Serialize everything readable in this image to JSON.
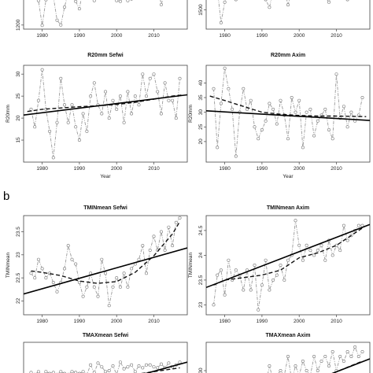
{
  "panel_letter_b": "b",
  "chart_data": [
    {
      "id": "top-left-partial",
      "type": "line",
      "title": "",
      "xlabel": "",
      "ylabel": "",
      "xlim": [
        1975,
        2019
      ],
      "ylim": [
        1150,
        1700
      ],
      "x_ticks": [
        1980,
        1990,
        2000,
        2010
      ],
      "y_ticks": [
        1200
      ],
      "series": [
        {
          "role": "observed",
          "x": [
            1977,
            1978,
            1979,
            1980,
            1981,
            1982,
            1983,
            1984,
            1985,
            1986,
            1987,
            1988,
            1989,
            1990,
            1991,
            1992,
            1993,
            1994,
            1995,
            1996,
            1997,
            1998,
            1999,
            2000,
            2001,
            2002,
            2003,
            2004,
            2005,
            2006,
            2007,
            2008,
            2009,
            2010,
            2011,
            2012,
            2013,
            2014,
            2015,
            2016,
            2017
          ],
          "y": [
            1660,
            1660,
            1500,
            1195,
            1510,
            1600,
            1550,
            1260,
            1200,
            1420,
            1600,
            1550,
            1490,
            1400,
            1650,
            1560,
            1600,
            1500,
            1560,
            1680,
            1600,
            1550,
            1640,
            1500,
            1490,
            1560,
            1500,
            1520,
            1640,
            1600,
            1680,
            1540,
            1600,
            1650,
            1700,
            1450,
            1610,
            1600,
            1550,
            1650,
            1640
          ]
        },
        {
          "role": "loess",
          "x": [
            1976,
            1979
          ],
          "y": [
            1620,
            1630
          ]
        }
      ]
    },
    {
      "id": "top-right-partial",
      "type": "line",
      "title": "",
      "xlabel": "",
      "ylabel": "",
      "xlim": [
        1975,
        2019
      ],
      "ylim": [
        1350,
        1700
      ],
      "x_ticks": [
        1980,
        1990,
        2000,
        2010
      ],
      "y_ticks": [
        1500
      ],
      "series": [
        {
          "role": "observed",
          "x": [
            1977,
            1978,
            1979,
            1980,
            1981,
            1982,
            1983,
            1984,
            1985,
            1986,
            1987,
            1988,
            1989,
            1990,
            1991,
            1992,
            1993,
            1994,
            1995,
            1996,
            1997,
            1998,
            1999,
            2000,
            2001,
            2002,
            2003,
            2004,
            2005,
            2006,
            2007,
            2008,
            2009,
            2010,
            2011,
            2012,
            2013,
            2014,
            2015,
            2016,
            2017
          ],
          "y": [
            1680,
            1660,
            1400,
            1560,
            1640,
            1650,
            1580,
            1620,
            1660,
            1600,
            1690,
            1620,
            1640,
            1600,
            1580,
            1520,
            1650,
            1620,
            1600,
            1660,
            1540,
            1640,
            1600,
            1640,
            1620,
            1640,
            1600,
            1660,
            1620,
            1640,
            1600,
            1560,
            1650,
            1620,
            1600,
            1640,
            1580,
            1660,
            1620,
            1600,
            1660
          ]
        }
      ]
    },
    {
      "id": "r20mm-sefwi",
      "type": "line",
      "title": "R20mm  Sefwi",
      "xlabel": "Year",
      "ylabel": "R20mm",
      "xlim": [
        1975,
        2019
      ],
      "ylim": [
        10,
        32
      ],
      "x_ticks": [
        1980,
        1990,
        2000,
        2010
      ],
      "y_ticks": [
        15,
        20,
        25,
        30
      ],
      "series": [
        {
          "role": "observed",
          "x": [
            1977,
            1978,
            1979,
            1980,
            1981,
            1982,
            1983,
            1984,
            1985,
            1986,
            1987,
            1988,
            1989,
            1990,
            1991,
            1992,
            1993,
            1994,
            1995,
            1996,
            1997,
            1998,
            1999,
            2000,
            2001,
            2002,
            2003,
            2004,
            2005,
            2006,
            2007,
            2008,
            2009,
            2010,
            2011,
            2012,
            2013,
            2014,
            2015,
            2016,
            2017
          ],
          "y": [
            22,
            18,
            24,
            31,
            22,
            17,
            11,
            19,
            29,
            23,
            19,
            23,
            18,
            15,
            21,
            17,
            25,
            28,
            23,
            21,
            26,
            20,
            24,
            22,
            25,
            19,
            26,
            21,
            25,
            23,
            30,
            25,
            29,
            30,
            26,
            21,
            28,
            24,
            24,
            20,
            29
          ]
        },
        {
          "role": "loess",
          "x": [
            1976,
            1980,
            1985,
            1990,
            1995,
            2000,
            2005,
            2010,
            2015,
            2018
          ],
          "y": [
            21.5,
            22.0,
            22.3,
            22.6,
            22.8,
            23.1,
            23.6,
            24.3,
            25.0,
            25.3
          ]
        },
        {
          "role": "linear",
          "x": [
            1975,
            2019
          ],
          "y": [
            20.7,
            25.3
          ]
        }
      ]
    },
    {
      "id": "r20mm-axim",
      "type": "line",
      "title": "R20mm  Axim",
      "xlabel": "Year",
      "ylabel": "R20mm",
      "xlim": [
        1975,
        2019
      ],
      "ylim": [
        13,
        46
      ],
      "x_ticks": [
        1980,
        1990,
        2000,
        2010
      ],
      "y_ticks": [
        20,
        25,
        30,
        35,
        40
      ],
      "series": [
        {
          "role": "observed",
          "x": [
            1977,
            1978,
            1979,
            1980,
            1981,
            1982,
            1983,
            1984,
            1985,
            1986,
            1987,
            1988,
            1989,
            1990,
            1991,
            1992,
            1993,
            1994,
            1995,
            1996,
            1997,
            1998,
            1999,
            2000,
            2001,
            2002,
            2003,
            2004,
            2005,
            2006,
            2007,
            2008,
            2009,
            2010,
            2011,
            2012,
            2013,
            2014,
            2015,
            2016,
            2017
          ],
          "y": [
            38,
            18,
            33,
            45,
            38,
            31,
            15,
            30,
            38,
            31,
            34,
            25,
            21,
            24,
            27,
            33,
            31,
            26,
            34,
            29,
            21,
            35,
            30,
            34,
            18,
            30,
            31,
            22,
            27,
            29,
            31,
            24,
            21,
            43,
            28,
            32,
            25,
            30,
            27,
            29,
            35
          ]
        },
        {
          "role": "loess",
          "x": [
            1976,
            1980,
            1985,
            1990,
            1995,
            2000,
            2005,
            2010,
            2015,
            2018
          ],
          "y": [
            35.5,
            34.0,
            32.0,
            30.0,
            29.3,
            28.9,
            28.7,
            28.7,
            28.6,
            28.5
          ]
        },
        {
          "role": "linear",
          "x": [
            1975,
            2019
          ],
          "y": [
            30.5,
            27.2
          ]
        }
      ]
    },
    {
      "id": "tminmean-sefwi",
      "type": "line",
      "title": "TMINmean  Sefwi",
      "xlabel": "",
      "ylabel": "TMINmean",
      "xlim": [
        1975,
        2019
      ],
      "ylim": [
        21.7,
        23.85
      ],
      "x_ticks": [
        1980,
        1990,
        2000,
        2010
      ],
      "y_ticks": [
        22.0,
        22.5,
        23.0,
        23.5
      ],
      "series": [
        {
          "role": "observed",
          "x": [
            1977,
            1978,
            1979,
            1980,
            1981,
            1982,
            1983,
            1984,
            1985,
            1986,
            1987,
            1988,
            1989,
            1990,
            1991,
            1992,
            1993,
            1994,
            1995,
            1996,
            1997,
            1998,
            1999,
            2000,
            2001,
            2002,
            2003,
            2004,
            2005,
            2006,
            2007,
            2008,
            2009,
            2010,
            2011,
            2012,
            2013,
            2014,
            2015,
            2016,
            2017
          ],
          "y": [
            22.6,
            22.5,
            22.9,
            22.7,
            22.5,
            22.6,
            22.4,
            22.2,
            22.4,
            22.7,
            23.2,
            22.9,
            22.8,
            22.4,
            22.1,
            22.3,
            22.6,
            22.3,
            22.1,
            22.9,
            22.6,
            21.9,
            22.3,
            22.5,
            22.3,
            22.6,
            22.3,
            22.7,
            22.8,
            22.9,
            23.2,
            22.6,
            23.1,
            23.4,
            23.1,
            23.5,
            23.1,
            23.6,
            23.2,
            23.7,
            23.8
          ]
        },
        {
          "role": "loess",
          "x": [
            1977,
            1980,
            1985,
            1990,
            1995,
            2000,
            2005,
            2010,
            2015,
            2017
          ],
          "y": [
            22.65,
            22.62,
            22.55,
            22.43,
            22.38,
            22.42,
            22.62,
            22.98,
            23.45,
            23.72
          ]
        },
        {
          "role": "linear",
          "x": [
            1975,
            2019
          ],
          "y": [
            22.15,
            23.15
          ]
        }
      ]
    },
    {
      "id": "tminmean-axim",
      "type": "line",
      "title": "TMINmean  Axim",
      "xlabel": "",
      "ylabel": "TMINmean",
      "xlim": [
        1975,
        2019
      ],
      "ylim": [
        22.8,
        24.8
      ],
      "x_ticks": [
        1980,
        1990,
        2000,
        2010
      ],
      "y_ticks": [
        23.0,
        23.5,
        24.0,
        24.5
      ],
      "series": [
        {
          "role": "observed",
          "x": [
            1977,
            1978,
            1979,
            1980,
            1981,
            1982,
            1983,
            1984,
            1985,
            1986,
            1987,
            1988,
            1989,
            1990,
            1991,
            1992,
            1993,
            1994,
            1995,
            1996,
            1997,
            1998,
            1999,
            2000,
            2001,
            2002,
            2003,
            2004,
            2005,
            2006,
            2007,
            2008,
            2009,
            2010,
            2011,
            2012,
            2013,
            2014,
            2015,
            2016,
            2017
          ],
          "y": [
            23.0,
            23.6,
            23.7,
            23.2,
            23.9,
            23.5,
            23.7,
            23.6,
            23.3,
            23.7,
            23.3,
            23.8,
            22.9,
            23.4,
            23.9,
            23.3,
            23.5,
            23.6,
            23.8,
            23.5,
            23.9,
            24.0,
            24.7,
            24.2,
            23.9,
            24.2,
            24.1,
            24.0,
            24.1,
            24.2,
            23.9,
            24.3,
            24.0,
            24.2,
            24.1,
            24.6,
            24.3,
            24.4,
            24.5,
            24.6,
            24.6
          ]
        },
        {
          "role": "loess",
          "x": [
            1977,
            1980,
            1985,
            1990,
            1995,
            2000,
            2005,
            2010,
            2015,
            2017
          ],
          "y": [
            23.4,
            23.5,
            23.55,
            23.6,
            23.7,
            23.95,
            24.05,
            24.2,
            24.45,
            24.55
          ]
        },
        {
          "role": "linear",
          "x": [
            1975,
            2019
          ],
          "y": [
            23.35,
            24.62
          ]
        }
      ]
    },
    {
      "id": "tmaxmean-sefwi",
      "type": "line",
      "title": "TMAXmean  Sefwi",
      "xlabel": "",
      "ylabel": "",
      "xlim": [
        1975,
        2019
      ],
      "ylim": [
        30,
        35
      ],
      "x_ticks": [],
      "y_ticks": [],
      "series": [
        {
          "role": "observed",
          "x": [
            1977,
            1978,
            1979,
            1980,
            1981,
            1982,
            1983,
            1984,
            1985,
            1986,
            1987,
            1988,
            1989,
            1990,
            1991,
            1992,
            1993,
            1994,
            1995,
            1996,
            1997,
            1998,
            1999,
            2000,
            2001,
            2002,
            2003,
            2004,
            2005,
            2006,
            2007,
            2008,
            2009,
            2010,
            2011,
            2012,
            2013,
            2014,
            2015,
            2016,
            2017
          ],
          "y": [
            31.8,
            31.6,
            31.9,
            31.5,
            31.9,
            31.7,
            31.8,
            31.6,
            31.9,
            31.7,
            31.6,
            31.9,
            31.8,
            31.7,
            31.9,
            31.6,
            32.6,
            31.8,
            32.8,
            32.4,
            31.9,
            32.0,
            32.5,
            31.6,
            32.9,
            32.2,
            32.4,
            32.6,
            31.9,
            32.5,
            32.3,
            32.6,
            32.6,
            32.4,
            32.3,
            32.7,
            32.3,
            32.8,
            32.4,
            32.6,
            32.9
          ]
        },
        {
          "role": "loess",
          "x": [
            2005,
            2017
          ],
          "y": [
            31.6,
            32.3
          ]
        },
        {
          "role": "linear",
          "x": [
            2006,
            2019
          ],
          "y": [
            31.5,
            32.9
          ]
        }
      ]
    },
    {
      "id": "tmaxmean-axim",
      "type": "line",
      "title": "TMAXmean  Axim",
      "xlabel": "",
      "ylabel": "",
      "xlim": [
        1975,
        2019
      ],
      "ylim": [
        29.6,
        30.6
      ],
      "x_ticks": [],
      "y_ticks": [
        30.0
      ],
      "series": [
        {
          "role": "observed",
          "x": [
            1977,
            1978,
            1979,
            1980,
            1981,
            1982,
            1983,
            1984,
            1985,
            1986,
            1987,
            1988,
            1989,
            1990,
            1991,
            1992,
            1993,
            1994,
            1995,
            1996,
            1997,
            1998,
            1999,
            2000,
            2001,
            2002,
            2003,
            2004,
            2005,
            2006,
            2007,
            2008,
            2009,
            2010,
            2011,
            2012,
            2013,
            2014,
            2015,
            2016,
            2017
          ],
          "y": [
            29.8,
            29.7,
            29.9,
            29.8,
            29.7,
            29.9,
            29.8,
            29.7,
            29.8,
            29.9,
            29.7,
            29.8,
            29.9,
            29.8,
            29.7,
            30.1,
            29.8,
            29.9,
            30.0,
            29.9,
            30.3,
            29.8,
            30.1,
            29.9,
            30.2,
            30.0,
            29.9,
            30.3,
            30.0,
            30.2,
            30.3,
            30.1,
            30.4,
            30.0,
            30.3,
            30.2,
            30.4,
            30.3,
            30.5,
            30.3,
            30.4
          ]
        },
        {
          "role": "loess",
          "x": [
            2003,
            2017
          ],
          "y": [
            29.75,
            30.2
          ]
        },
        {
          "role": "linear",
          "x": [
            2001,
            2019
          ],
          "y": [
            29.7,
            30.25
          ]
        }
      ]
    }
  ]
}
